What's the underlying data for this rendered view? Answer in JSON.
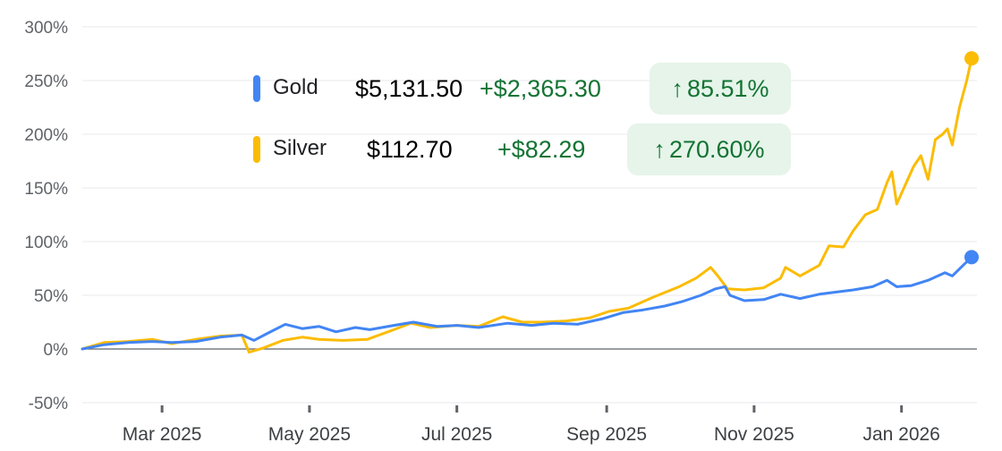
{
  "chart_data": {
    "type": "line",
    "y_unit": "%",
    "ylim": [
      -50,
      300
    ],
    "yticks": [
      "300%",
      "250%",
      "200%",
      "150%",
      "100%",
      "50%",
      "0%",
      "-50%"
    ],
    "ytick_values": [
      300,
      250,
      200,
      150,
      100,
      50,
      0,
      -50
    ],
    "xlim": [
      "2025-01-27",
      "2026-01-30"
    ],
    "xticks": [
      {
        "label": "Mar 2025",
        "date": "2025-03-01"
      },
      {
        "label": "May 2025",
        "date": "2025-05-01"
      },
      {
        "label": "Jul 2025",
        "date": "2025-07-01"
      },
      {
        "label": "Sep 2025",
        "date": "2025-09-01"
      },
      {
        "label": "Nov 2025",
        "date": "2025-11-01"
      },
      {
        "label": "Jan 2026",
        "date": "2026-01-01"
      }
    ],
    "grid": true,
    "series": [
      {
        "name": "Gold",
        "color": "#4285f4",
        "price": "$5,131.50",
        "change": "+$2,365.30",
        "percent": "85.51%",
        "points": [
          [
            "2025-01-27",
            0
          ],
          [
            "2025-02-05",
            4
          ],
          [
            "2025-02-15",
            6
          ],
          [
            "2025-02-25",
            7
          ],
          [
            "2025-03-05",
            6
          ],
          [
            "2025-03-15",
            7
          ],
          [
            "2025-03-25",
            11
          ],
          [
            "2025-04-03",
            13
          ],
          [
            "2025-04-08",
            8
          ],
          [
            "2025-04-14",
            15
          ],
          [
            "2025-04-21",
            23
          ],
          [
            "2025-04-28",
            19
          ],
          [
            "2025-05-05",
            21
          ],
          [
            "2025-05-12",
            16
          ],
          [
            "2025-05-20",
            20
          ],
          [
            "2025-05-26",
            18
          ],
          [
            "2025-06-05",
            22
          ],
          [
            "2025-06-13",
            25
          ],
          [
            "2025-06-23",
            21
          ],
          [
            "2025-07-01",
            22
          ],
          [
            "2025-07-10",
            20
          ],
          [
            "2025-07-22",
            24
          ],
          [
            "2025-08-01",
            22
          ],
          [
            "2025-08-10",
            24
          ],
          [
            "2025-08-20",
            23
          ],
          [
            "2025-08-30",
            28
          ],
          [
            "2025-09-08",
            34
          ],
          [
            "2025-09-15",
            36
          ],
          [
            "2025-09-25",
            40
          ],
          [
            "2025-10-02",
            44
          ],
          [
            "2025-10-10",
            50
          ],
          [
            "2025-10-16",
            56
          ],
          [
            "2025-10-20",
            58
          ],
          [
            "2025-10-22",
            50
          ],
          [
            "2025-10-28",
            45
          ],
          [
            "2025-11-05",
            46
          ],
          [
            "2025-11-12",
            51
          ],
          [
            "2025-11-20",
            47
          ],
          [
            "2025-11-28",
            51
          ],
          [
            "2025-12-05",
            53
          ],
          [
            "2025-12-12",
            55
          ],
          [
            "2025-12-20",
            58
          ],
          [
            "2025-12-26",
            64
          ],
          [
            "2025-12-30",
            58
          ],
          [
            "2026-01-05",
            59
          ],
          [
            "2026-01-12",
            64
          ],
          [
            "2026-01-19",
            71
          ],
          [
            "2026-01-22",
            68
          ],
          [
            "2026-01-27",
            79
          ],
          [
            "2026-01-30",
            85.51
          ]
        ]
      },
      {
        "name": "Silver",
        "color": "#fbbc04",
        "price": "$112.70",
        "change": "+$82.29",
        "percent": "270.60%",
        "points": [
          [
            "2025-01-27",
            0
          ],
          [
            "2025-02-05",
            6
          ],
          [
            "2025-02-15",
            7
          ],
          [
            "2025-02-25",
            9
          ],
          [
            "2025-03-05",
            5
          ],
          [
            "2025-03-15",
            9
          ],
          [
            "2025-03-25",
            12
          ],
          [
            "2025-04-03",
            13
          ],
          [
            "2025-04-06",
            -3
          ],
          [
            "2025-04-12",
            1
          ],
          [
            "2025-04-20",
            8
          ],
          [
            "2025-04-28",
            11
          ],
          [
            "2025-05-05",
            9
          ],
          [
            "2025-05-15",
            8
          ],
          [
            "2025-05-25",
            9
          ],
          [
            "2025-06-05",
            18
          ],
          [
            "2025-06-12",
            24
          ],
          [
            "2025-06-20",
            20
          ],
          [
            "2025-07-01",
            22
          ],
          [
            "2025-07-10",
            21
          ],
          [
            "2025-07-20",
            30
          ],
          [
            "2025-07-28",
            25
          ],
          [
            "2025-08-05",
            25
          ],
          [
            "2025-08-15",
            26
          ],
          [
            "2025-08-25",
            29
          ],
          [
            "2025-09-02",
            35
          ],
          [
            "2025-09-10",
            38
          ],
          [
            "2025-09-20",
            48
          ],
          [
            "2025-10-01",
            58
          ],
          [
            "2025-10-08",
            66
          ],
          [
            "2025-10-14",
            76
          ],
          [
            "2025-10-17",
            68
          ],
          [
            "2025-10-21",
            56
          ],
          [
            "2025-10-28",
            55
          ],
          [
            "2025-11-05",
            57
          ],
          [
            "2025-11-12",
            66
          ],
          [
            "2025-11-14",
            76
          ],
          [
            "2025-11-20",
            68
          ],
          [
            "2025-11-28",
            78
          ],
          [
            "2025-12-02",
            96
          ],
          [
            "2025-12-08",
            95
          ],
          [
            "2025-12-12",
            110
          ],
          [
            "2025-12-17",
            125
          ],
          [
            "2025-12-22",
            130
          ],
          [
            "2025-12-26",
            155
          ],
          [
            "2025-12-28",
            165
          ],
          [
            "2025-12-30",
            135
          ],
          [
            "2026-01-02",
            150
          ],
          [
            "2026-01-06",
            170
          ],
          [
            "2026-01-09",
            180
          ],
          [
            "2026-01-12",
            158
          ],
          [
            "2026-01-15",
            195
          ],
          [
            "2026-01-18",
            200
          ],
          [
            "2026-01-20",
            205
          ],
          [
            "2026-01-22",
            190
          ],
          [
            "2026-01-25",
            225
          ],
          [
            "2026-01-28",
            250
          ],
          [
            "2026-01-30",
            270.6
          ]
        ]
      }
    ]
  }
}
